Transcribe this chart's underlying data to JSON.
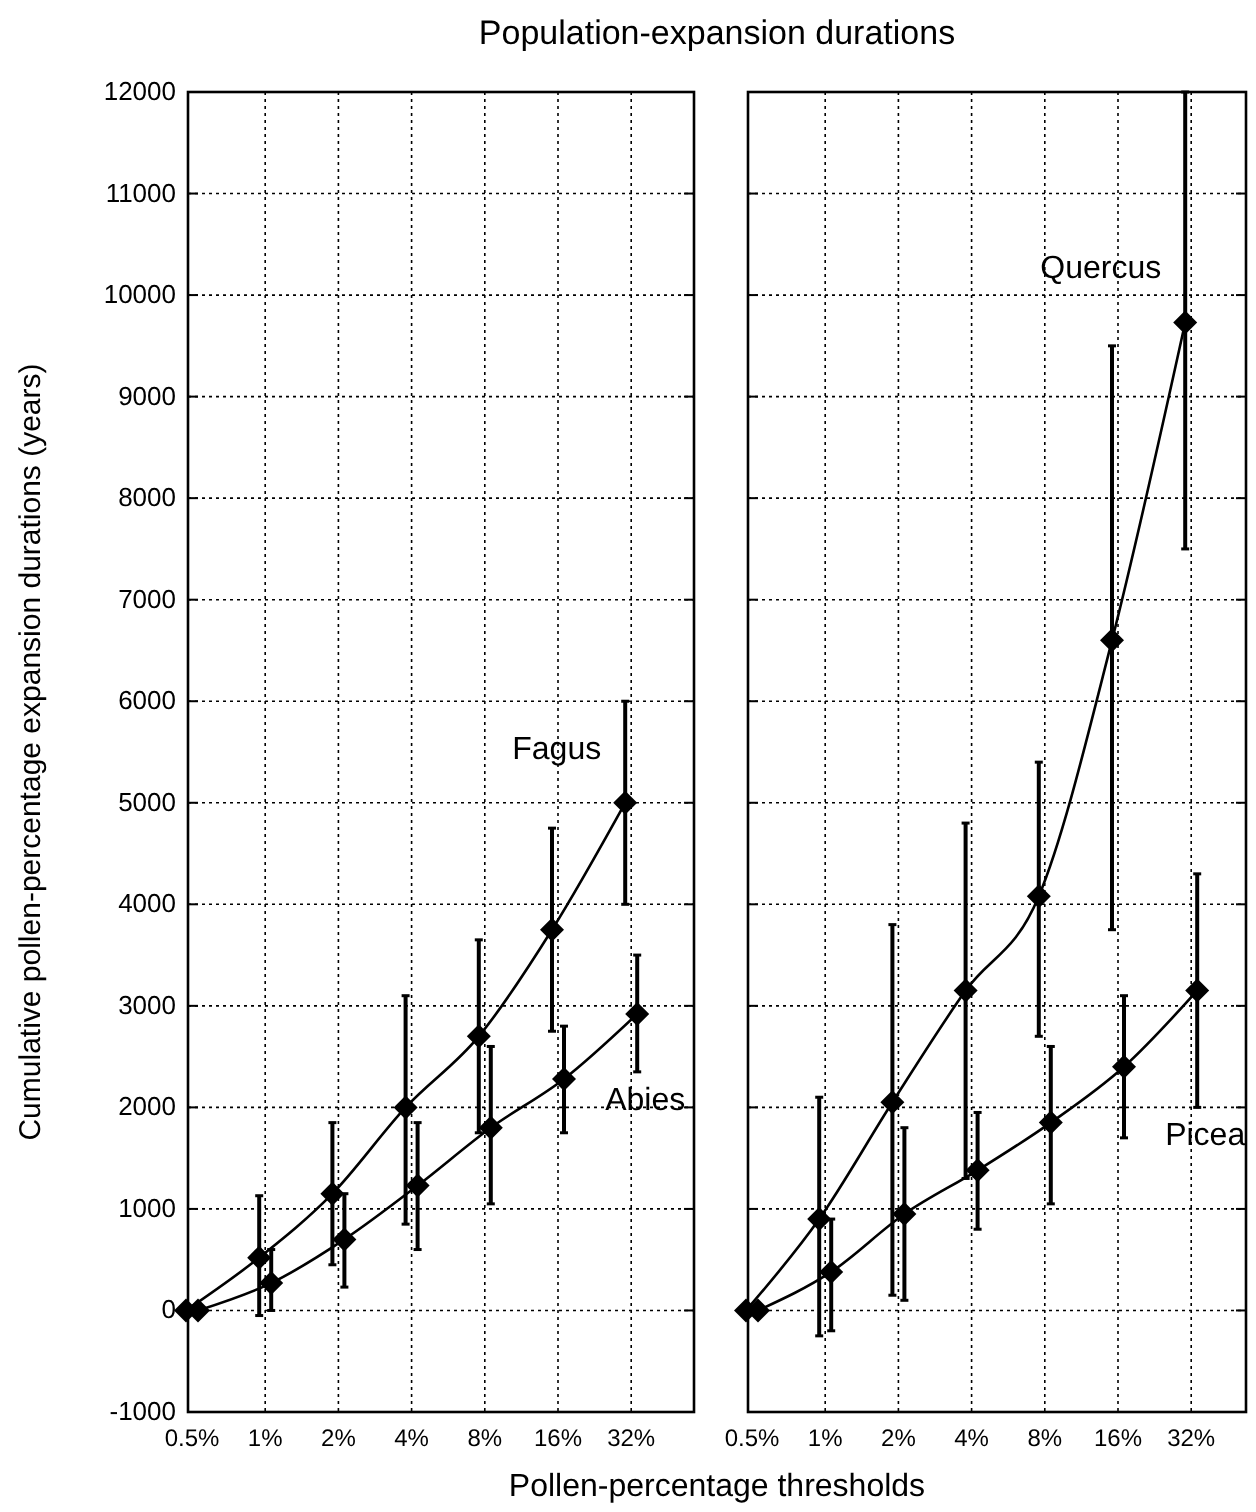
{
  "chart_data": [
    {
      "type": "line",
      "title": "Population-expansion durations",
      "xlabel": "Pollen-percentage thresholds",
      "ylabel": "Cumulative pollen-percentage expansion durations (years)",
      "categories": [
        "0.5%",
        "1%",
        "2%",
        "4%",
        "8%",
        "16%",
        "32%"
      ],
      "ylim": [
        -1000,
        12000
      ],
      "yticks": [
        -1000,
        0,
        1000,
        2000,
        3000,
        4000,
        5000,
        6000,
        7000,
        8000,
        9000,
        10000,
        11000,
        12000
      ],
      "grid": true,
      "marker": "diamond",
      "line_style": "solid",
      "series": [
        {
          "name": "Fagus",
          "color": "#000000",
          "values": [
            0,
            520,
            1150,
            2000,
            2700,
            3750,
            5000
          ],
          "errors": [
            null,
            [
              -50,
              1130
            ],
            [
              450,
              1850
            ],
            [
              850,
              3100
            ],
            [
              1750,
              3650
            ],
            [
              2750,
              4750
            ],
            [
              4000,
              6000
            ]
          ]
        },
        {
          "name": "Abies",
          "color": "#000000",
          "values": [
            0,
            270,
            700,
            1230,
            1800,
            2280,
            2920
          ],
          "errors": [
            null,
            [
              0,
              600
            ],
            [
              230,
              1150
            ],
            [
              600,
              1850
            ],
            [
              1050,
              2600
            ],
            [
              1750,
              2800
            ],
            [
              2350,
              3500
            ]
          ]
        }
      ]
    },
    {
      "type": "line",
      "categories": [
        "0.5%",
        "1%",
        "2%",
        "4%",
        "8%",
        "16%",
        "32%"
      ],
      "ylim": [
        -1000,
        12000
      ],
      "yticks": [
        -1000,
        0,
        1000,
        2000,
        3000,
        4000,
        5000,
        6000,
        7000,
        8000,
        9000,
        10000,
        11000,
        12000
      ],
      "tick_labels": "x",
      "grid": true,
      "marker": "diamond",
      "line_style": "solid",
      "series": [
        {
          "name": "Quercus",
          "color": "#000000",
          "values": [
            0,
            900,
            2050,
            3150,
            4080,
            6600,
            9730
          ],
          "errors": [
            null,
            [
              -250,
              2100
            ],
            [
              150,
              3800
            ],
            [
              1300,
              4800
            ],
            [
              2700,
              5400
            ],
            [
              3750,
              9500
            ],
            [
              7500,
              12000
            ]
          ]
        },
        {
          "name": "Picea",
          "color": "#000000",
          "values": [
            0,
            380,
            950,
            1380,
            1850,
            2400,
            3150
          ],
          "errors": [
            null,
            [
              -200,
              900
            ],
            [
              100,
              1800
            ],
            [
              800,
              1950
            ],
            [
              1050,
              2600
            ],
            [
              1700,
              3100
            ],
            [
              2000,
              4300
            ]
          ]
        }
      ]
    }
  ]
}
